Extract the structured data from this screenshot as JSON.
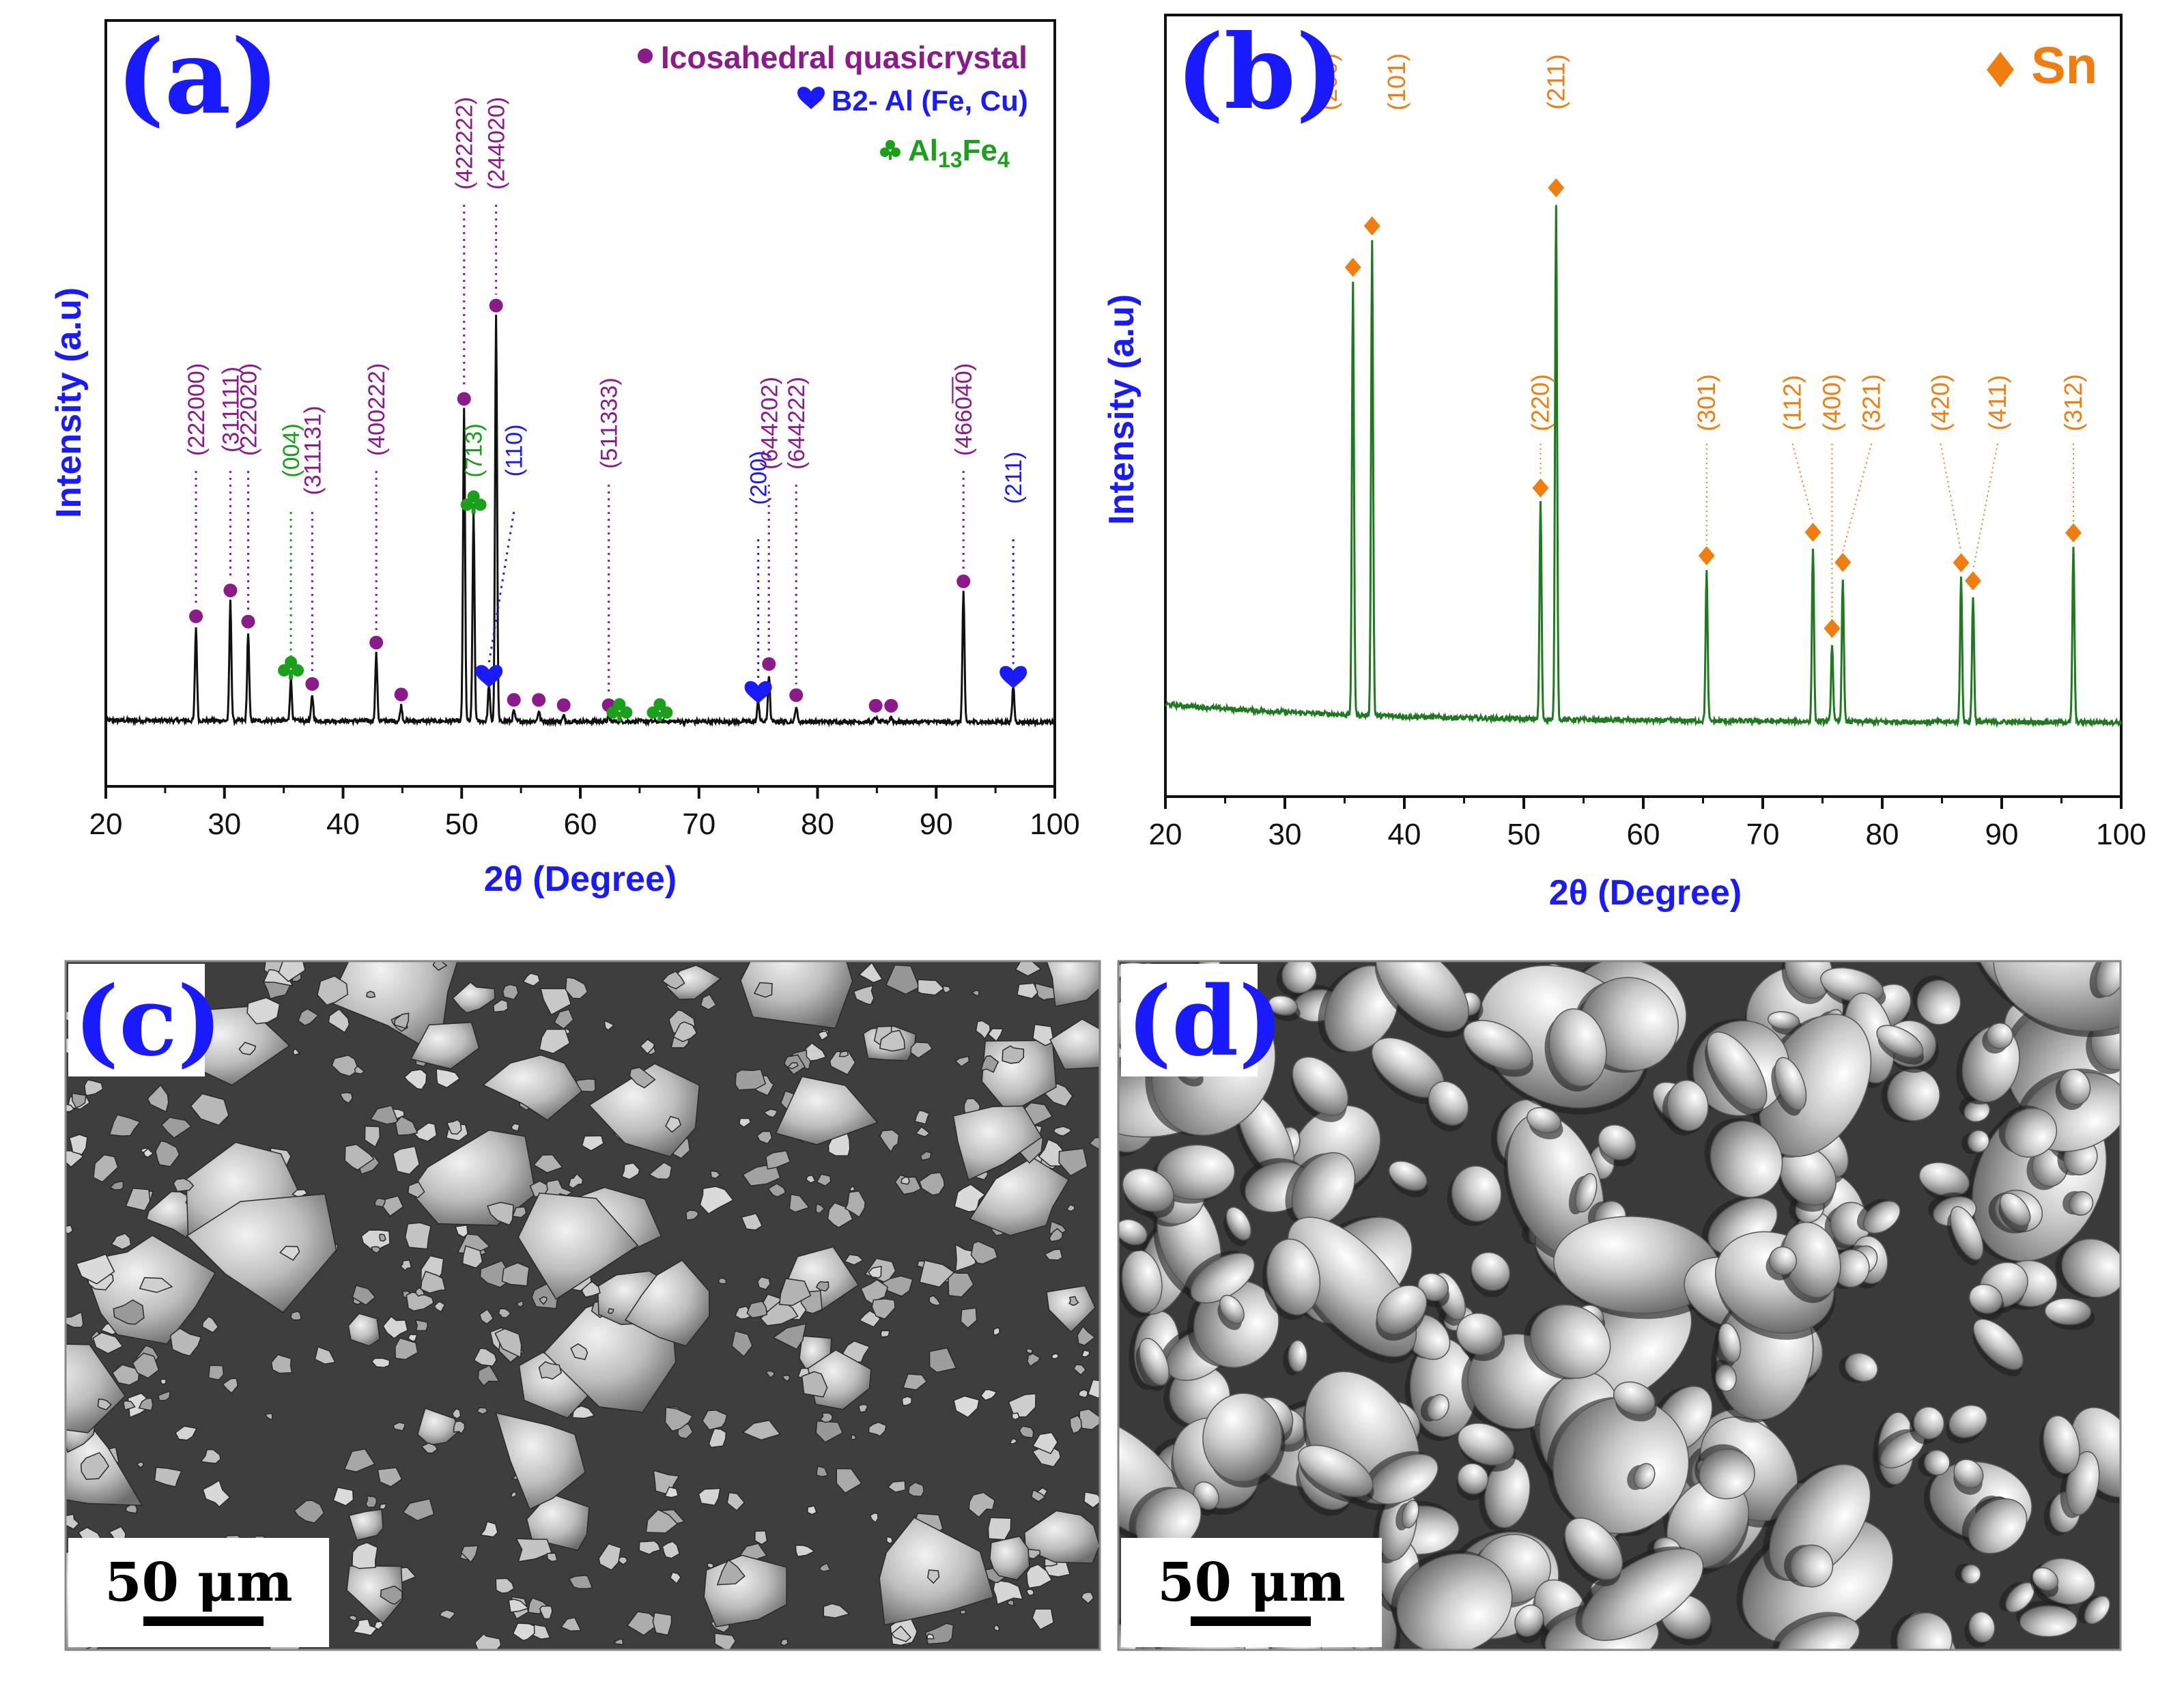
{
  "panels": {
    "a": "(a)",
    "b": "(b)",
    "c": "(c)",
    "d": "(d)"
  },
  "colors": {
    "quasicrystal": "#8b1a8b",
    "b2": "#1a1aff",
    "al13fe4": "#1aa01a",
    "sn": "#f07d10",
    "trace_a": "#111111",
    "trace_b": "#1f7a1f",
    "axis_title": "#1a1aff"
  },
  "scale_bars": {
    "c": "50 μm",
    "d": "50 μm"
  },
  "chart_data": [
    {
      "id": "a",
      "type": "line",
      "xlabel": "2θ (Degree)",
      "ylabel": "Intensity (a.u)",
      "xlim": [
        20,
        100
      ],
      "xticks": [
        20,
        30,
        40,
        50,
        60,
        70,
        80,
        90,
        100
      ],
      "ylim": [
        0,
        100
      ],
      "legend": {
        "placement": "top-right",
        "entries": [
          {
            "marker": "circle",
            "label": "Icosahedral quasicrystal",
            "colorKey": "quasicrystal"
          },
          {
            "marker": "heart",
            "label": "B2- Al (Fe, Cu)",
            "colorKey": "b2"
          },
          {
            "marker": "club",
            "label": "Al13Fe4",
            "label_main": "Al",
            "sub1": "13",
            "mid": "Fe",
            "sub2": "4",
            "colorKey": "al13fe4"
          }
        ]
      },
      "baseline": 5,
      "peaks": [
        {
          "x": 27.6,
          "y": 18,
          "phase": "circle"
        },
        {
          "x": 30.5,
          "y": 23,
          "phase": "circle"
        },
        {
          "x": 32.0,
          "y": 17,
          "phase": "circle"
        },
        {
          "x": 35.6,
          "y": 8,
          "phase": "club"
        },
        {
          "x": 37.4,
          "y": 5,
          "phase": "circle"
        },
        {
          "x": 42.8,
          "y": 13,
          "phase": "circle"
        },
        {
          "x": 44.9,
          "y": 3,
          "phase": "circle"
        },
        {
          "x": 50.2,
          "y": 60,
          "phase": "circle"
        },
        {
          "x": 51.0,
          "y": 40,
          "phase": "club"
        },
        {
          "x": 52.9,
          "y": 78,
          "phase": "circle"
        },
        {
          "x": 52.3,
          "y": 7,
          "phase": "heart"
        },
        {
          "x": 54.4,
          "y": 2,
          "phase": "circle"
        },
        {
          "x": 56.5,
          "y": 2,
          "phase": "circle"
        },
        {
          "x": 58.6,
          "y": 1,
          "phase": "circle"
        },
        {
          "x": 62.4,
          "y": 1,
          "phase": "circle"
        },
        {
          "x": 63.3,
          "y": 0,
          "phase": "club"
        },
        {
          "x": 66.7,
          "y": 0,
          "phase": "club"
        },
        {
          "x": 75.0,
          "y": 4,
          "phase": "heart"
        },
        {
          "x": 75.9,
          "y": 9,
          "phase": "circle"
        },
        {
          "x": 78.2,
          "y": 3,
          "phase": "circle"
        },
        {
          "x": 84.9,
          "y": 1,
          "phase": "circle"
        },
        {
          "x": 86.2,
          "y": 1,
          "phase": "circle"
        },
        {
          "x": 92.3,
          "y": 25,
          "phase": "circle"
        },
        {
          "x": 96.5,
          "y": 7,
          "phase": "heart"
        }
      ],
      "annotations": [
        {
          "x": 27.6,
          "label": "(222000)",
          "colorKey": "quasicrystal"
        },
        {
          "x": 30.5,
          "label": "(311111)",
          "colorKey": "quasicrystal"
        },
        {
          "x": 32.0,
          "label": "(2220̅2̅0)",
          "colorKey": "quasicrystal"
        },
        {
          "x": 35.6,
          "label": "(004)",
          "colorKey": "al13fe4"
        },
        {
          "x": 37.4,
          "label": "(311131)",
          "colorKey": "quasicrystal"
        },
        {
          "x": 42.8,
          "label": "(400222)",
          "colorKey": "quasicrystal"
        },
        {
          "x": 50.2,
          "label": "(422222)",
          "colorKey": "quasicrystal"
        },
        {
          "x": 51.0,
          "label": "(713)",
          "colorKey": "al13fe4"
        },
        {
          "x": 52.9,
          "label": "(244020)",
          "colorKey": "quasicrystal"
        },
        {
          "x": 52.3,
          "label": "(110)",
          "colorKey": "b2"
        },
        {
          "x": 62.4,
          "label": "(511333)",
          "colorKey": "quasicrystal"
        },
        {
          "x": 75.0,
          "label": "(200)",
          "colorKey": "b2"
        },
        {
          "x": 75.9,
          "label": "(644202)",
          "colorKey": "quasicrystal"
        },
        {
          "x": 78.2,
          "label": "(644222)",
          "colorKey": "quasicrystal"
        },
        {
          "x": 92.3,
          "label": "(4660̅4̅0)",
          "colorKey": "quasicrystal"
        },
        {
          "x": 96.5,
          "label": "(211)",
          "colorKey": "b2"
        }
      ]
    },
    {
      "id": "b",
      "type": "line",
      "xlabel": "2θ (Degree)",
      "ylabel": "Intensity (a.u)",
      "xlim": [
        20,
        100
      ],
      "xticks": [
        20,
        30,
        40,
        50,
        60,
        70,
        80,
        90,
        100
      ],
      "ylim": [
        0,
        100
      ],
      "legend": {
        "placement": "top-right",
        "entries": [
          {
            "marker": "diamond",
            "label": "Sn",
            "colorKey": "sn"
          }
        ]
      },
      "peaks": [
        {
          "x": 35.7,
          "y": 72,
          "hkl": "(200)"
        },
        {
          "x": 37.3,
          "y": 79,
          "hkl": "(101)"
        },
        {
          "x": 51.4,
          "y": 36,
          "hkl": "(220)"
        },
        {
          "x": 52.7,
          "y": 86,
          "hkl": "(211)"
        },
        {
          "x": 65.3,
          "y": 25,
          "hkl": "(301)"
        },
        {
          "x": 74.2,
          "y": 29,
          "hkl": "(112)"
        },
        {
          "x": 75.8,
          "y": 13,
          "hkl": "(400)"
        },
        {
          "x": 76.7,
          "y": 24,
          "hkl": "(321)"
        },
        {
          "x": 86.6,
          "y": 24,
          "hkl": "(420)"
        },
        {
          "x": 87.6,
          "y": 21,
          "hkl": "(411)"
        },
        {
          "x": 96.0,
          "y": 29,
          "hkl": "(312)"
        }
      ]
    }
  ]
}
